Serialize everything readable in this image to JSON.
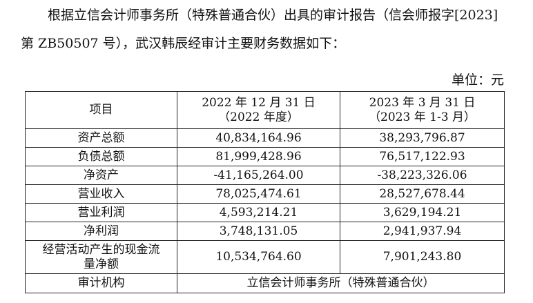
{
  "intro": {
    "line1": "根据立信会计师事务所（特殊普通合伙）出具的审计报告（信会师报字[2023]",
    "line2": "第 ZB50507 号），武汉韩辰经审计主要财务数据如下："
  },
  "unit_label": "单位：元",
  "table": {
    "headers": {
      "item": "项目",
      "col1_line1": "2022 年 12 月 31 日",
      "col1_line2": "（2022 年度）",
      "col2_line1": "2023 年 3 月 31 日",
      "col2_line2": "（2023 年 1-3 月）"
    },
    "rows": [
      {
        "item": "资产总额",
        "v2022": "40,834,164.96",
        "v2023": "38,293,796.87"
      },
      {
        "item": "负债总额",
        "v2022": "81,999,428.96",
        "v2023": "76,517,122.93"
      },
      {
        "item": "净资产",
        "v2022": "-41,165,264.00",
        "v2023": "-38,223,326.06"
      },
      {
        "item": "营业收入",
        "v2022": "78,025,474.61",
        "v2023": "28,527,678.44"
      },
      {
        "item": "营业利润",
        "v2022": "4,593,214.21",
        "v2023": "3,629,194.21"
      },
      {
        "item": "净利润",
        "v2022": "3,748,131.05",
        "v2023": "2,941,937.94"
      },
      {
        "item_line1": "经营活动产生的现金流",
        "item_line2": "量净额",
        "v2022": "10,534,764.60",
        "v2023": "7,901,243.80"
      }
    ],
    "auditor": {
      "label": "审计机构",
      "value": "立信会计师事务所（特殊普通合伙）"
    }
  }
}
